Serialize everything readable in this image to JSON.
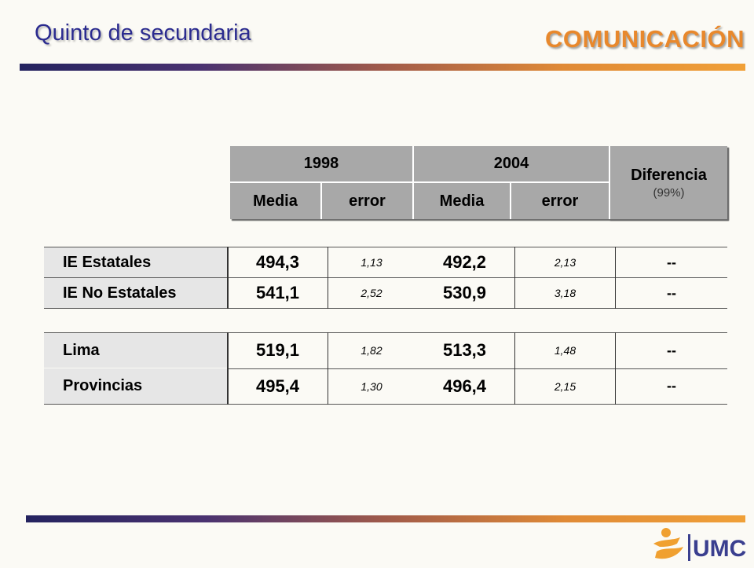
{
  "header": {
    "title": "Quinto de secundaria",
    "subject": "COMUNICACIÓN"
  },
  "table": {
    "years": [
      "1998",
      "2004"
    ],
    "subcols": [
      "Media",
      "error",
      "Media",
      "error"
    ],
    "diff_label": "Diferencia",
    "diff_sub": "(99%)",
    "groups": [
      {
        "rows": [
          {
            "label": "IE Estatales",
            "m1998": "494,3",
            "e1998": "1,13",
            "m2004": "492,2",
            "e2004": "2,13",
            "diff": "--"
          },
          {
            "label": "IE No Estatales",
            "m1998": "541,1",
            "e1998": "2,52",
            "m2004": "530,9",
            "e2004": "3,18",
            "diff": "--"
          }
        ]
      },
      {
        "rows": [
          {
            "label": "Lima",
            "m1998": "519,1",
            "e1998": "1,82",
            "m2004": "513,3",
            "e2004": "1,48",
            "diff": "--"
          },
          {
            "label": "Provincias",
            "m1998": "495,4",
            "e1998": "1,30",
            "m2004": "496,4",
            "e2004": "2,15",
            "diff": "--"
          }
        ]
      }
    ]
  },
  "logo": {
    "text": "UMC",
    "icon": "person-figure-icon",
    "colors": {
      "figure": "#f0a030",
      "text": "#3a3f8f"
    }
  }
}
